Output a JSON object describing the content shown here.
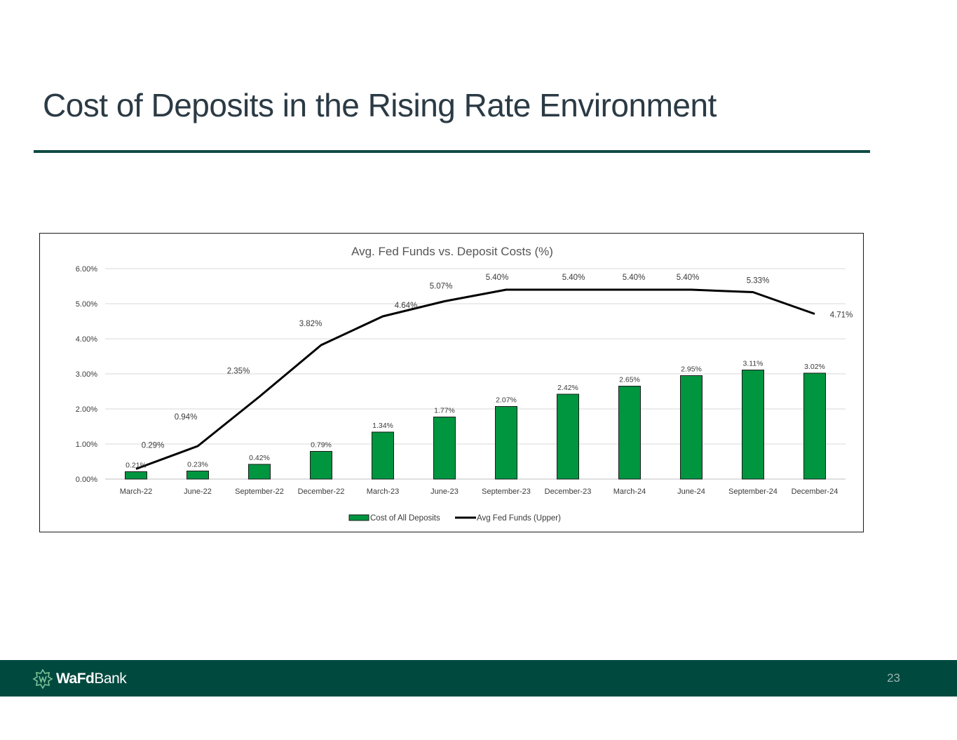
{
  "slide": {
    "title": "Cost of Deposits in the Rising Rate Environment",
    "page_number": "23"
  },
  "brand": {
    "logo_bold": "WaFd",
    "logo_regular": "Bank",
    "footer_color": "#00493f",
    "accent_color": "#0f4a44"
  },
  "chart_data": {
    "type": "bar",
    "title": "Avg. Fed Funds vs. Deposit Costs (%)",
    "categories": [
      "March-22",
      "June-22",
      "September-22",
      "December-22",
      "March-23",
      "June-23",
      "September-23",
      "December-23",
      "March-24",
      "June-24",
      "September-24",
      "December-24"
    ],
    "series": [
      {
        "name": "Cost of All Deposits",
        "type": "bar",
        "color": "#00953f",
        "values": [
          0.21,
          0.23,
          0.42,
          0.79,
          1.34,
          1.77,
          2.07,
          2.42,
          2.65,
          2.95,
          3.11,
          3.02
        ],
        "labels": [
          "0.21%",
          "0.23%",
          "0.42%",
          "0.79%",
          "1.34%",
          "1.77%",
          "2.07%",
          "2.42%",
          "2.65%",
          "2.95%",
          "3.11%",
          "3.02%"
        ]
      },
      {
        "name": "Avg Fed Funds (Upper)",
        "type": "line",
        "color": "#000000",
        "values": [
          0.29,
          0.94,
          2.35,
          3.82,
          4.64,
          5.07,
          5.4,
          5.4,
          5.4,
          5.4,
          5.33,
          4.71
        ],
        "labels": [
          "0.29%",
          "0.94%",
          "2.35%",
          "3.82%",
          "4.64%",
          "5.07%",
          "5.40%",
          "5.40%",
          "5.40%",
          "5.40%",
          "5.33%",
          "4.71%"
        ]
      }
    ],
    "y_ticks": [
      "0.00%",
      "1.00%",
      "2.00%",
      "3.00%",
      "4.00%",
      "5.00%",
      "6.00%"
    ],
    "ylim": [
      0,
      6
    ],
    "xlabel": "",
    "ylabel": "",
    "grid": true,
    "legend": "bottom-center"
  }
}
